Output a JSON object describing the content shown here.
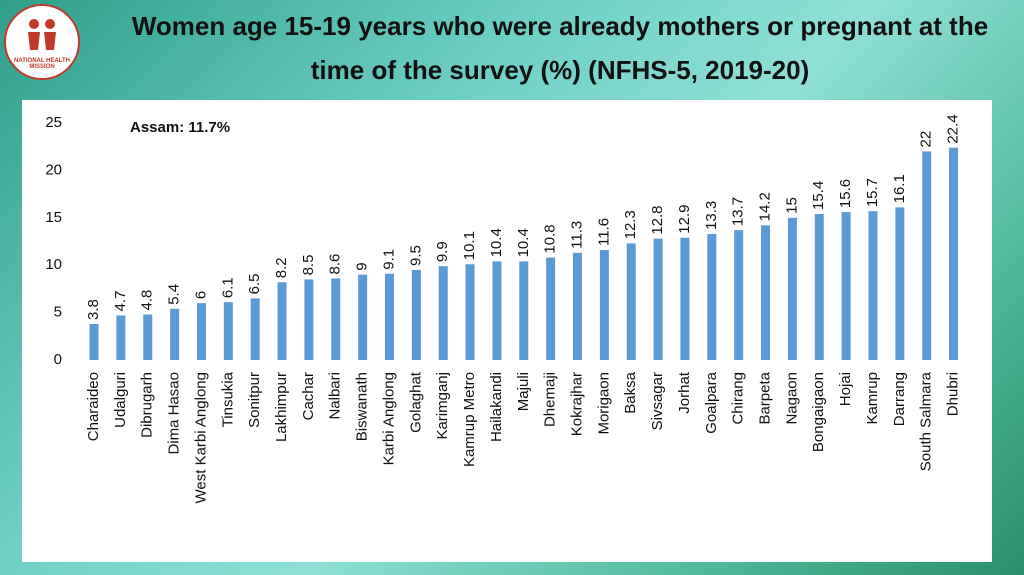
{
  "logo": "NATIONAL HEALTH MISSION",
  "chart_data": {
    "type": "bar",
    "title": "Women age 15-19 years who were already mothers or pregnant at the time of the survey (%) (NFHS-5, 2019-20)",
    "annotation": "Assam: 11.7%",
    "categories": [
      "Charaideo",
      "Udalguri",
      "Dibrugarh",
      "Dima Hasao",
      "West Karbi Anglong",
      "Tinsukia",
      "Sonitpur",
      "Lakhimpur",
      "Cachar",
      "Nalbari",
      "Biswanath",
      "Karbi Anglong",
      "Golaghat",
      "Karimganj",
      "Kamrup Metro",
      "Hailakandi",
      "Majuli",
      "Dhemaji",
      "Kokrajhar",
      "Morigaon",
      "Baksa",
      "Sivsagar",
      "Jorhat",
      "Goalpara",
      "Chirang",
      "Barpeta",
      "Nagaon",
      "Bongaigaon",
      "Hojai",
      "Kamrup",
      "Darrang",
      "South Salmara",
      "Dhubri"
    ],
    "values": [
      3.8,
      4.7,
      4.8,
      5.4,
      6,
      6.1,
      6.5,
      8.2,
      8.5,
      8.6,
      9,
      9.1,
      9.5,
      9.9,
      10.1,
      10.4,
      10.4,
      10.8,
      11.3,
      11.6,
      12.3,
      12.8,
      12.9,
      13.3,
      13.7,
      14.2,
      15,
      15.4,
      15.6,
      15.7,
      16.1,
      22,
      22.4
    ],
    "color": "#5b9bd5",
    "ylim": [
      0,
      25
    ],
    "yticks": [
      0,
      5,
      10,
      15,
      20,
      25
    ],
    "grid": false
  }
}
